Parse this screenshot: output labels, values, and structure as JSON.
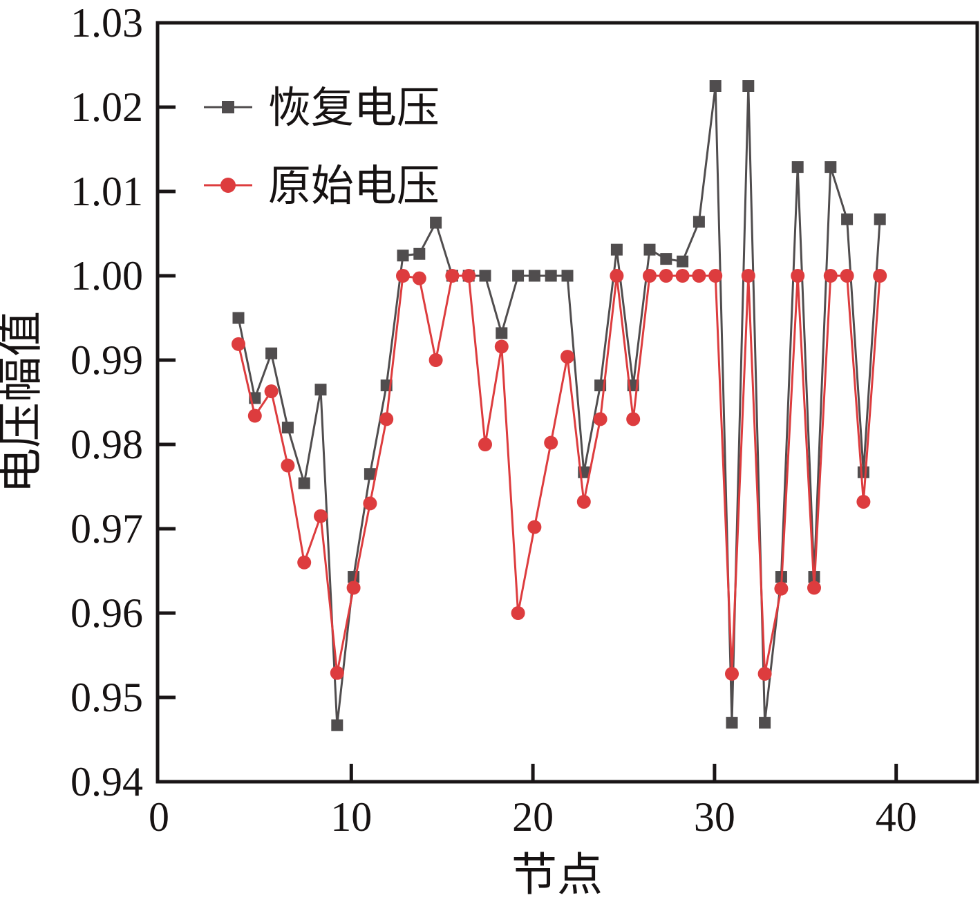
{
  "figure": {
    "background": "#FFFFFF",
    "frame_color": "#191516"
  },
  "legend": {
    "position": "top-left-inside",
    "items": [
      {
        "label": "恢复电压",
        "marker": "square-icon",
        "color": "#504D4E"
      },
      {
        "label": "原始电压",
        "marker": "circle-icon",
        "color": "#DD3C3E"
      }
    ]
  },
  "chart_data": {
    "type": "line",
    "title": "",
    "xlabel": "节点",
    "ylabel": "电压幅值",
    "grid": false,
    "legend_position": "top-left-inside",
    "x_axis": {
      "tick_labels": [
        "0",
        "10",
        "20",
        "30",
        "40"
      ]
    },
    "y_axis": {
      "tick_labels": [
        "1.03",
        "1.02",
        "1.01",
        "1.00",
        "0.99",
        "0.98",
        "0.97",
        "0.96",
        "0.95",
        "0.94"
      ],
      "range": [
        0.94,
        1.03
      ]
    },
    "x": [
      4,
      5,
      6,
      7,
      8,
      9,
      10,
      11,
      12,
      13,
      14,
      15,
      16,
      17,
      18,
      19,
      20,
      21,
      22,
      23,
      24,
      25,
      26,
      27,
      28,
      29,
      30,
      31,
      32,
      33,
      34,
      35,
      36,
      37,
      38,
      39,
      40,
      41,
      42,
      43
    ],
    "series": [
      {
        "name": "恢复电压",
        "marker": "square",
        "color": "#504D4E",
        "values": [
          0.995,
          0.9855,
          0.9908,
          0.982,
          0.9754,
          0.9865,
          0.9467,
          0.9643,
          0.9765,
          0.987,
          1.0024,
          1.0026,
          1.0063,
          1.0,
          1.0,
          1.0,
          0.9932,
          1.0,
          1.0,
          1.0,
          1.0,
          0.9767,
          0.987,
          1.0031,
          0.987,
          1.0031,
          1.002,
          1.0017,
          1.0064,
          1.0225,
          0.947,
          1.0225,
          0.947,
          0.9643,
          1.0129,
          0.9643,
          1.0129,
          1.0067,
          0.9767,
          1.0067
        ]
      },
      {
        "name": "原始电压",
        "marker": "circle",
        "color": "#DD3C3E",
        "values": [
          0.9919,
          0.9834,
          0.9863,
          0.9775,
          0.966,
          0.9715,
          0.9529,
          0.963,
          0.973,
          0.983,
          1.0,
          0.9997,
          0.99,
          1.0,
          1.0,
          0.98,
          0.9916,
          0.96,
          0.9702,
          0.9802,
          0.9904,
          0.9732,
          0.983,
          1.0,
          0.983,
          1.0,
          1.0,
          1.0,
          1.0,
          1.0,
          0.9528,
          1.0,
          0.9528,
          0.9629,
          1.0,
          0.963,
          1.0,
          1.0,
          0.9732,
          1.0
        ]
      }
    ]
  }
}
